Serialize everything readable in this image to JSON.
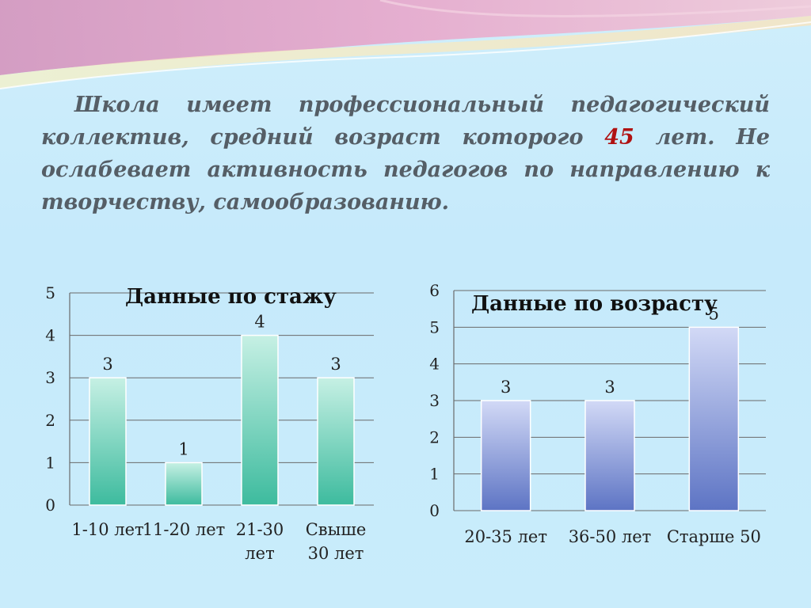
{
  "intro": {
    "line1": "Школа имеет профессиональный педагогический",
    "line2_before": "коллектив, средний возраст которого",
    "age_value": "45",
    "line2_after": "лет. Не",
    "line3": "ослабевает активность педагогов по направлению к",
    "line4": "творчеству, самообразованию."
  },
  "colors": {
    "age_highlight": "#b01212",
    "chart1_bar": "#3dbb9e",
    "chart2_bar": "#5d74c4"
  },
  "chart_data": [
    {
      "type": "bar",
      "title": "Данные по стажу",
      "categories": [
        [
          "1-10 лет"
        ],
        [
          "11-20 лет"
        ],
        [
          "21-30",
          "лет"
        ],
        [
          "Свыше",
          "30 лет"
        ]
      ],
      "values": [
        3,
        1,
        4,
        3
      ],
      "ylim": [
        0,
        5
      ],
      "yticks": [
        0,
        1,
        2,
        3,
        4,
        5
      ],
      "grid": true,
      "data_labels": true
    },
    {
      "type": "bar",
      "title": "Данные по возрасту",
      "categories": [
        [
          "20-35 лет"
        ],
        [
          "36-50 лет"
        ],
        [
          "Старше 50"
        ]
      ],
      "values": [
        3,
        3,
        5
      ],
      "ylim": [
        0,
        6
      ],
      "yticks": [
        0,
        1,
        2,
        3,
        4,
        5,
        6
      ],
      "grid": true,
      "data_labels": true
    }
  ]
}
